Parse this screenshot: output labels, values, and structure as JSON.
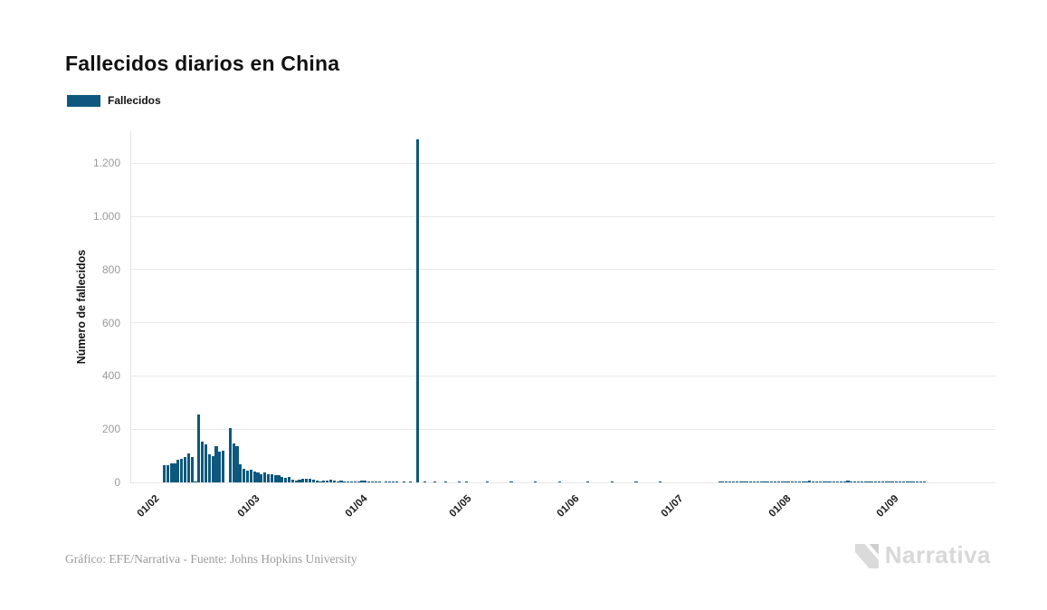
{
  "page": {
    "title": "Fallecidos diarios en China",
    "footer": "Gráfico: EFE/Narrativa - Fuente: Johns Hopkins University",
    "brand": "Narrativa"
  },
  "legend": {
    "label": "Fallecidos",
    "color": "#0e587d"
  },
  "chart_data": {
    "type": "bar",
    "title": "Fallecidos diarios en China",
    "series_name": "Fallecidos",
    "ylabel": "Número de fallecidos",
    "xlabel": "",
    "grid": true,
    "legend_position": "top-left",
    "bar_color": "#0e587d",
    "grid_color": "#e8e8e8",
    "ylim": [
      0,
      1320
    ],
    "x_frequency": "daily",
    "x_start_date": "26/01/2020",
    "peak_annotation": {
      "date": "17/04/2020",
      "value": 1290
    },
    "yticks": [
      {
        "label": "0",
        "value": 0
      },
      {
        "label": "200",
        "value": 200
      },
      {
        "label": "400",
        "value": 400
      },
      {
        "label": "600",
        "value": 600
      },
      {
        "label": "800",
        "value": 800
      },
      {
        "label": "1.000",
        "value": 1000
      },
      {
        "label": "1.200",
        "value": 1200
      }
    ],
    "xticks": [
      {
        "label": "01/02",
        "index": 6
      },
      {
        "label": "01/03",
        "index": 35
      },
      {
        "label": "01/04",
        "index": 66
      },
      {
        "label": "01/05",
        "index": 96
      },
      {
        "label": "01/06",
        "index": 127
      },
      {
        "label": "01/07",
        "index": 157
      },
      {
        "label": "01/08",
        "index": 188
      },
      {
        "label": "01/09",
        "index": 219
      }
    ],
    "values": [
      0,
      0,
      0,
      0,
      0,
      0,
      0,
      0,
      0,
      64,
      66,
      72,
      73,
      86,
      89,
      97,
      108,
      97,
      5,
      254,
      152,
      142,
      106,
      98,
      136,
      116,
      118,
      0,
      205,
      148,
      137,
      69,
      52,
      44,
      47,
      42,
      38,
      31,
      36,
      31,
      30,
      28,
      27,
      22,
      17,
      22,
      11,
      7,
      11,
      13,
      14,
      13,
      11,
      8,
      3,
      7,
      6,
      10,
      7,
      4,
      6,
      5,
      3,
      5,
      4,
      2,
      7,
      6,
      4,
      3,
      2,
      1,
      0,
      2,
      1,
      1,
      2,
      0,
      1,
      0,
      1,
      0,
      1290,
      0,
      1,
      0,
      0,
      1,
      0,
      0,
      1,
      0,
      0,
      0,
      1,
      0,
      1,
      0,
      0,
      0,
      0,
      0,
      1,
      0,
      0,
      0,
      0,
      0,
      0,
      1,
      0,
      0,
      0,
      0,
      0,
      0,
      1,
      0,
      0,
      0,
      0,
      0,
      0,
      1,
      0,
      0,
      0,
      0,
      0,
      0,
      0,
      1,
      0,
      0,
      0,
      0,
      0,
      0,
      1,
      0,
      0,
      0,
      0,
      0,
      0,
      1,
      0,
      0,
      0,
      0,
      0,
      0,
      1,
      0,
      0,
      0,
      0,
      0,
      0,
      0,
      0,
      0,
      0,
      0,
      0,
      0,
      0,
      0,
      0,
      1,
      1,
      2,
      1,
      2,
      2,
      3,
      2,
      3,
      2,
      3,
      4,
      3,
      2,
      3,
      2,
      3,
      4,
      3,
      4,
      3,
      2,
      3,
      2,
      3,
      2,
      7,
      3,
      2,
      4,
      3,
      5,
      3,
      2,
      3,
      4,
      3,
      6,
      3,
      2,
      3,
      4,
      2,
      3,
      2,
      4,
      3,
      2,
      3,
      2,
      3,
      2,
      4,
      2,
      3,
      2,
      1,
      2,
      1,
      1,
      0,
      0,
      0,
      0,
      0,
      0,
      0,
      0,
      0,
      0,
      0,
      0,
      0,
      0,
      0,
      0,
      0,
      0,
      0,
      0
    ]
  }
}
